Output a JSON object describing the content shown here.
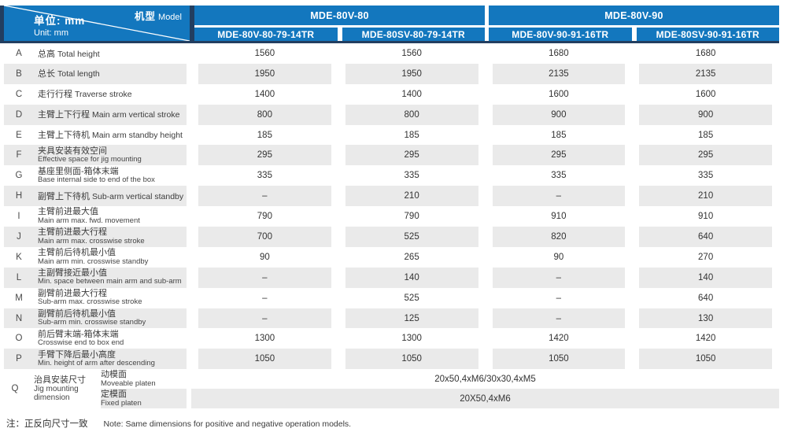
{
  "header": {
    "corner": {
      "model_cn": "机型",
      "model_en": "Model",
      "unit_cn": "单位: mm",
      "unit_en": "Unit: mm"
    },
    "groups": [
      {
        "label": "MDE-80V-80",
        "columns": [
          "MDE-80V-80-79-14TR",
          "MDE-80SV-80-79-14TR"
        ]
      },
      {
        "label": "MDE-80V-90",
        "columns": [
          "MDE-80V-90-91-16TR",
          "MDE-80SV-90-91-16TR"
        ]
      }
    ]
  },
  "table": {
    "rows": [
      {
        "key": "A",
        "cn": "总高",
        "en": "Total height",
        "two_line": false,
        "values": [
          "1560",
          "1560",
          "1680",
          "1680"
        ]
      },
      {
        "key": "B",
        "cn": "总长",
        "en": "Total length",
        "two_line": false,
        "values": [
          "1950",
          "1950",
          "2135",
          "2135"
        ]
      },
      {
        "key": "C",
        "cn": "走行行程",
        "en": "Traverse stroke",
        "two_line": false,
        "values": [
          "1400",
          "1400",
          "1600",
          "1600"
        ]
      },
      {
        "key": "D",
        "cn": "主臂上下行程",
        "en": "Main arm vertical stroke",
        "two_line": false,
        "values": [
          "800",
          "800",
          "900",
          "900"
        ]
      },
      {
        "key": "E",
        "cn": "主臂上下待机",
        "en": "Main arm standby height",
        "two_line": false,
        "values": [
          "185",
          "185",
          "185",
          "185"
        ]
      },
      {
        "key": "F",
        "cn": "夹具安装有效空间",
        "en": "Effective space for jig mounting",
        "two_line": true,
        "values": [
          "295",
          "295",
          "295",
          "295"
        ]
      },
      {
        "key": "G",
        "cn": "基座里侧面-箱体末端",
        "en": "Base internal side to end of the box",
        "two_line": true,
        "values": [
          "335",
          "335",
          "335",
          "335"
        ]
      },
      {
        "key": "H",
        "cn": "副臂上下待机",
        "en": "Sub-arm vertical standby",
        "two_line": false,
        "values": [
          "–",
          "210",
          "–",
          "210"
        ]
      },
      {
        "key": "I",
        "cn": "主臂前进最大值",
        "en": "Main arm max. fwd. movement",
        "two_line": true,
        "values": [
          "790",
          "790",
          "910",
          "910"
        ]
      },
      {
        "key": "J",
        "cn": "主臂前进最大行程",
        "en": "Main arm max. crosswise stroke",
        "two_line": true,
        "values": [
          "700",
          "525",
          "820",
          "640"
        ]
      },
      {
        "key": "K",
        "cn": "主臂前后待机最小值",
        "en": "Main arm min. crosswise standby",
        "two_line": true,
        "values": [
          "90",
          "265",
          "90",
          "270"
        ]
      },
      {
        "key": "L",
        "cn": "主副臂接近最小值",
        "en": "Min. space between main arm and sub-arm",
        "two_line": true,
        "values": [
          "–",
          "140",
          "–",
          "140"
        ]
      },
      {
        "key": "M",
        "cn": "副臂前进最大行程",
        "en": "Sub-arm max. crosswise stroke",
        "two_line": true,
        "values": [
          "–",
          "525",
          "–",
          "640"
        ]
      },
      {
        "key": "N",
        "cn": "副臂前后待机最小值",
        "en": "Sub-arm min. crosswise standby",
        "two_line": true,
        "values": [
          "–",
          "125",
          "–",
          "130"
        ]
      },
      {
        "key": "O",
        "cn": "前后臂末端-箱体末端",
        "en": "Crosswise end to box end",
        "two_line": true,
        "values": [
          "1300",
          "1300",
          "1420",
          "1420"
        ]
      },
      {
        "key": "P",
        "cn": "手臂下降后最小高度",
        "en": "Min. height of arm after descending",
        "two_line": true,
        "values": [
          "1050",
          "1050",
          "1050",
          "1050"
        ]
      }
    ],
    "q_row": {
      "key": "Q",
      "cn": "治具安装尺寸",
      "en_line1": "Jig mounting",
      "en_line2": "dimension",
      "subrows": [
        {
          "cn": "动模面",
          "en": "Moveable platen",
          "value": "20x50,4xM6/30x30,4xM5"
        },
        {
          "cn": "定模面",
          "en": "Fixed platen",
          "value": "20X50,4xM6"
        }
      ]
    }
  },
  "footnote": {
    "cn": "注：正反向尺寸一致",
    "en": "Note: Same dimensions for positive and negative operation models."
  },
  "colors": {
    "accent_blue": "#1377BE",
    "accent_navy": "#223E60",
    "row_gray": "#EAEAEA"
  }
}
